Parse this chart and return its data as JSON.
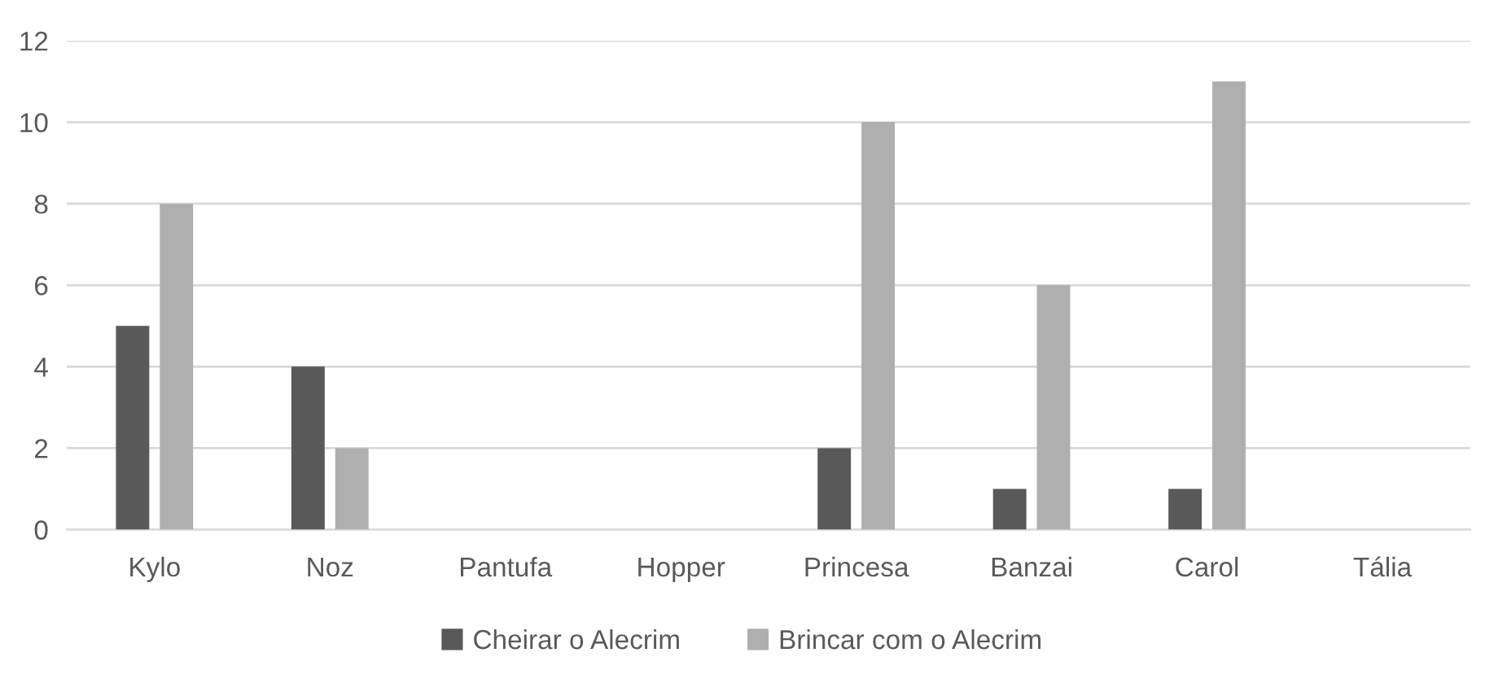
{
  "chart_data": {
    "type": "bar",
    "categories": [
      "Kylo",
      "Noz",
      "Pantufa",
      "Hopper",
      "Princesa",
      "Banzai",
      "Carol",
      "Tália"
    ],
    "series": [
      {
        "name": "Cheirar o Alecrim",
        "color": "#595959",
        "values": [
          5,
          4,
          0,
          0,
          2,
          1,
          1,
          0
        ]
      },
      {
        "name": "Brincar com o Alecrim",
        "color": "#afafaf",
        "values": [
          8,
          2,
          0,
          0,
          10,
          6,
          11,
          0
        ]
      }
    ],
    "ylim": [
      0,
      12
    ],
    "yticks": [
      0,
      2,
      4,
      6,
      8,
      10,
      12
    ],
    "grid": "y",
    "legend": "bottom"
  }
}
